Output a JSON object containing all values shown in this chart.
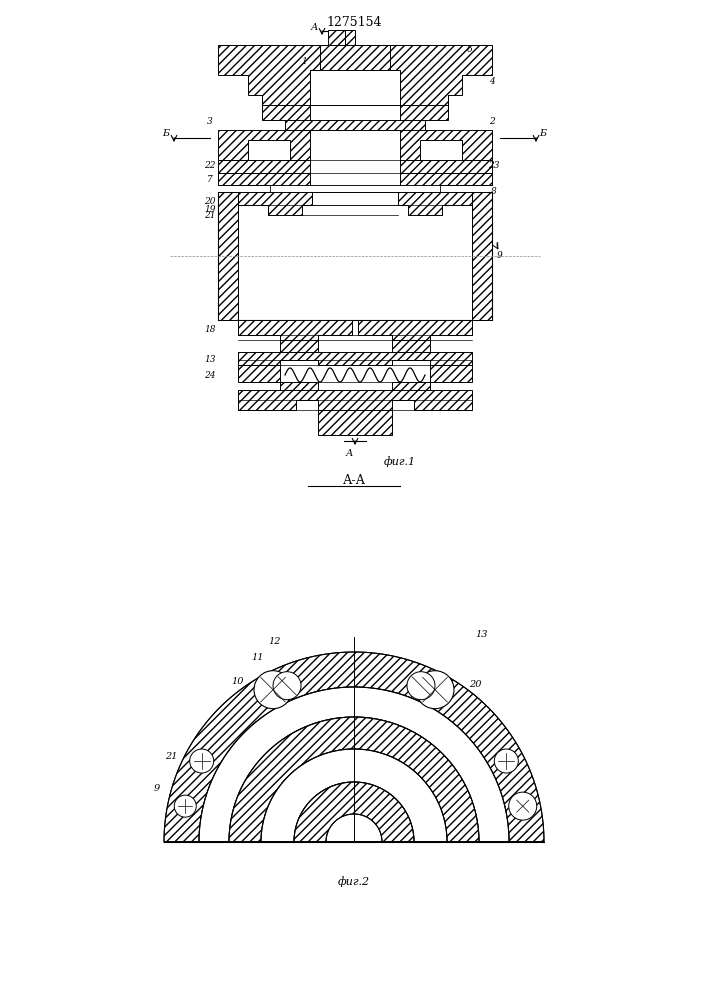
{
  "patent_number": "1275154",
  "fig1_label": "фиг.1",
  "fig2_label": "фиг.2",
  "section_label": "А-А",
  "bg_color": "#ffffff"
}
